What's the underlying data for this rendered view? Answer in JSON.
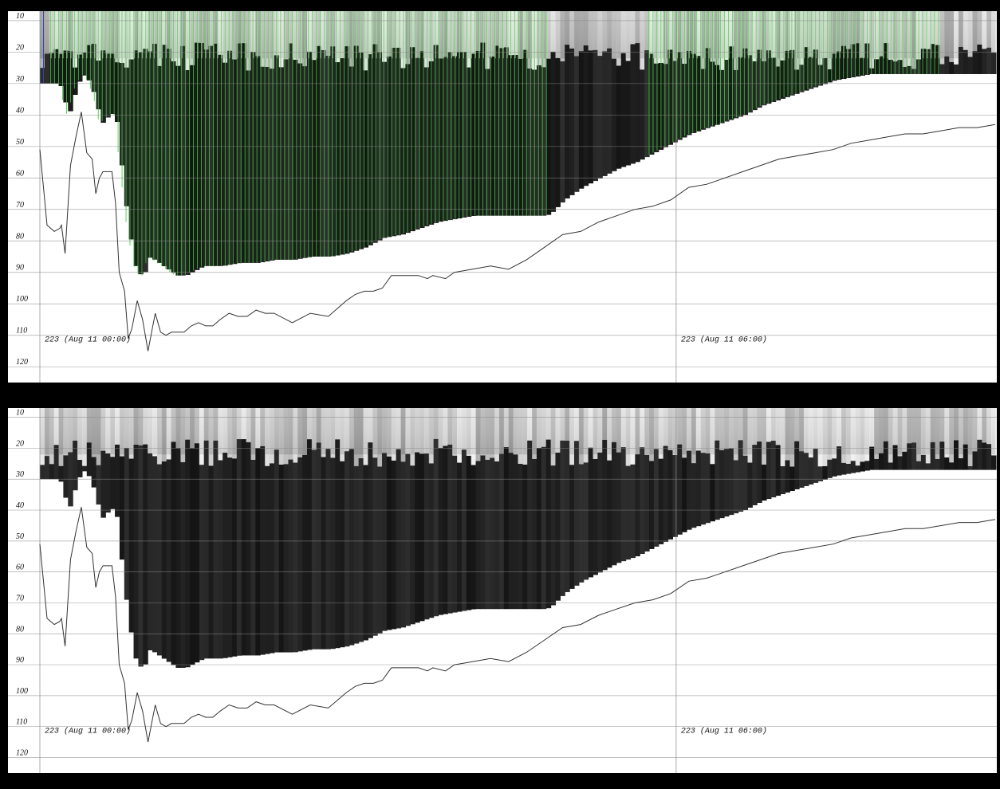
{
  "chart_data": [
    {
      "type": "area",
      "panel": "top",
      "title": "",
      "xlabel": "",
      "ylabel": "",
      "y_ticks": [
        10,
        20,
        30,
        40,
        50,
        60,
        70,
        80,
        90,
        100,
        110,
        120
      ],
      "ylim": [
        7,
        124
      ],
      "y_inverted": true,
      "x_time_labels": [
        "223 (Aug 11 00:00)",
        "223 (Aug 11 06:00)"
      ],
      "grid": true,
      "colors": {
        "highlight_bars": "#33cc33",
        "echo_dark": "#1a1a1a",
        "line": "#333333",
        "background": "#ffffff"
      },
      "series": [
        {
          "role": "seabed_line",
          "x": [
            0,
            4,
            8,
            11,
            12,
            14,
            17,
            20,
            23,
            26,
            29,
            31,
            33,
            35,
            37,
            40,
            42,
            44,
            47,
            49,
            51,
            54,
            57,
            60,
            62,
            64,
            67,
            70,
            73,
            76,
            80,
            84,
            88,
            92,
            96,
            100,
            105,
            110,
            115,
            120,
            125,
            130,
            140,
            150,
            160,
            170,
            175,
            180,
            185,
            190,
            195,
            200,
            205,
            210,
            215,
            218,
            225,
            230,
            240,
            250,
            260,
            270,
            280,
            290,
            300,
            310,
            320,
            330,
            340,
            350,
            360,
            370,
            380,
            390,
            400,
            410,
            420,
            430,
            440,
            450,
            460,
            470,
            480,
            490,
            500,
            510,
            520,
            530
          ],
          "y": [
            51,
            75,
            77,
            76,
            75,
            84,
            56,
            47,
            39,
            52,
            54,
            65,
            60,
            58,
            58,
            58,
            68,
            90,
            96,
            111,
            108,
            99,
            105,
            115,
            109,
            103,
            109,
            110,
            109,
            109,
            109,
            107,
            106,
            107,
            107,
            105,
            103,
            104,
            104,
            102,
            103,
            103,
            106,
            103,
            104,
            99,
            97,
            96,
            96,
            95,
            91,
            91,
            91,
            91,
            92,
            91,
            92,
            90,
            89,
            88,
            89,
            86,
            82,
            78,
            77,
            74,
            72,
            70,
            69,
            67,
            63,
            62,
            60,
            58,
            56,
            54,
            53,
            52,
            51,
            49,
            48,
            47,
            46,
            46,
            45,
            44,
            44,
            43
          ]
        },
        {
          "role": "echo_bottom",
          "x": [
            0,
            5,
            10,
            15,
            20,
            24,
            27,
            30,
            33,
            36,
            38,
            41,
            44,
            48,
            52,
            56,
            60,
            65,
            70,
            75,
            80,
            90,
            100,
            110,
            120,
            130,
            140,
            150,
            160,
            170,
            180,
            190,
            200,
            210,
            220,
            230,
            240,
            250,
            260,
            270,
            280,
            283,
            290,
            300,
            310,
            320,
            330,
            340,
            350,
            360,
            370,
            380,
            390,
            400,
            410,
            420,
            430,
            440,
            450,
            460,
            470,
            480,
            490,
            500,
            510,
            520,
            530
          ],
          "y": [
            30,
            30,
            30,
            40,
            30,
            27,
            30,
            35,
            43,
            41,
            40,
            39,
            55,
            75,
            88,
            92,
            85,
            87,
            89,
            91,
            91,
            88,
            88,
            87,
            87,
            86,
            86,
            85,
            85,
            84,
            82,
            79,
            78,
            76,
            74,
            73,
            72,
            72,
            72,
            72,
            72,
            71,
            67,
            63,
            60,
            57,
            55,
            52,
            49,
            46,
            44,
            42,
            40,
            37,
            35,
            33,
            31,
            29,
            28,
            27,
            27,
            27,
            27,
            27,
            27,
            27,
            27
          ]
        }
      ]
    },
    {
      "type": "area",
      "panel": "bottom",
      "title": "",
      "xlabel": "",
      "ylabel": "",
      "y_ticks": [
        10,
        20,
        30,
        40,
        50,
        60,
        70,
        80,
        90,
        100,
        110,
        120
      ],
      "ylim": [
        7,
        124
      ],
      "y_inverted": true,
      "x_time_labels": [
        "223 (Aug 11 00:00)",
        "223 (Aug 11 06:00)"
      ],
      "grid": true,
      "colors": {
        "echo_dark": "#1a1a1a",
        "line": "#333333",
        "background": "#ffffff"
      },
      "series": [
        {
          "role": "seabed_line",
          "x": [
            0,
            4,
            8,
            11,
            12,
            14,
            17,
            20,
            23,
            26,
            29,
            31,
            33,
            35,
            37,
            40,
            42,
            44,
            47,
            49,
            51,
            54,
            57,
            60,
            62,
            64,
            67,
            70,
            73,
            76,
            80,
            84,
            88,
            92,
            96,
            100,
            105,
            110,
            115,
            120,
            125,
            130,
            140,
            150,
            160,
            170,
            175,
            180,
            185,
            190,
            195,
            200,
            205,
            210,
            215,
            218,
            225,
            230,
            240,
            250,
            260,
            270,
            280,
            290,
            300,
            310,
            320,
            330,
            340,
            350,
            360,
            370,
            380,
            390,
            400,
            410,
            420,
            430,
            440,
            450,
            460,
            470,
            480,
            490,
            500,
            510,
            520,
            530
          ],
          "y": [
            51,
            75,
            77,
            76,
            75,
            84,
            56,
            47,
            39,
            52,
            54,
            65,
            60,
            58,
            58,
            58,
            68,
            90,
            96,
            111,
            108,
            99,
            105,
            115,
            109,
            103,
            109,
            110,
            109,
            109,
            109,
            107,
            106,
            107,
            107,
            105,
            103,
            104,
            104,
            102,
            103,
            103,
            106,
            103,
            104,
            99,
            97,
            96,
            96,
            95,
            91,
            91,
            91,
            91,
            92,
            91,
            92,
            90,
            89,
            88,
            89,
            86,
            82,
            78,
            77,
            74,
            72,
            70,
            69,
            67,
            63,
            62,
            60,
            58,
            56,
            54,
            53,
            52,
            51,
            49,
            48,
            47,
            46,
            46,
            45,
            44,
            44,
            43
          ]
        },
        {
          "role": "echo_bottom",
          "x": [
            0,
            5,
            10,
            15,
            20,
            24,
            27,
            30,
            33,
            36,
            38,
            41,
            44,
            48,
            52,
            56,
            60,
            65,
            70,
            75,
            80,
            90,
            100,
            110,
            120,
            130,
            140,
            150,
            160,
            170,
            180,
            190,
            200,
            210,
            220,
            230,
            240,
            250,
            260,
            270,
            280,
            283,
            290,
            300,
            310,
            320,
            330,
            340,
            350,
            360,
            370,
            380,
            390,
            400,
            410,
            420,
            430,
            440,
            450,
            460,
            470,
            480,
            490,
            500,
            510,
            520,
            530
          ],
          "y": [
            30,
            30,
            30,
            40,
            30,
            27,
            30,
            35,
            43,
            41,
            40,
            39,
            55,
            75,
            88,
            92,
            85,
            87,
            89,
            91,
            91,
            88,
            88,
            87,
            87,
            86,
            86,
            85,
            85,
            84,
            82,
            79,
            78,
            76,
            74,
            73,
            72,
            72,
            72,
            72,
            72,
            71,
            67,
            63,
            60,
            57,
            55,
            52,
            49,
            46,
            44,
            42,
            40,
            37,
            35,
            33,
            31,
            29,
            28,
            27,
            27,
            27,
            27,
            27,
            27,
            27,
            27
          ]
        }
      ]
    }
  ]
}
